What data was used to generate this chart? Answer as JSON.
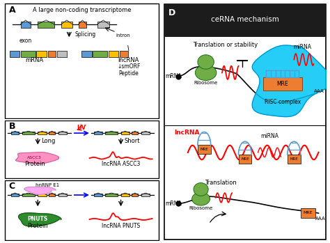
{
  "title": "ceRNA mechanism",
  "panel_A_label": "A",
  "panel_B_label": "B",
  "panel_C_label": "C",
  "panel_D_label": "D",
  "panel_A_title": "A large non-coding transcriptome",
  "splicing_label": "Splicing",
  "intron_label": "intron",
  "exon_label": "exon",
  "mrna_label": "mRNA",
  "lncrna_label": "lncRNA",
  "smorf_label": "↓smORF",
  "peptide_label": "Peptide",
  "uv_label": "UV",
  "long_label": "Long",
  "short_label": "Short",
  "protein_label": "Protein",
  "lncrna_ascc3": "lncRNA ASCC3",
  "hnrnp_label": "hnRNP E1",
  "pnuts_label": "PNUTS",
  "lncrna_pnuts": "lncRNA PNUTS",
  "translation_stability": "Translation or stability",
  "mirna_label": "miRNA",
  "ribosome_label": "Ribosome",
  "mre_label": "MRE",
  "risc_label": "RISC complex",
  "aaa_label": "AAA",
  "translation_label": "Translation",
  "lncrna_red": "lncRNA",
  "bg_color": "#ffffff",
  "exon_colors": [
    "#5b9bd5",
    "#70ad47",
    "#ffc000",
    "#ed7d31",
    "#bfbfbf"
  ],
  "ribosome_color": "#70ad47",
  "risc_color": "#00b0f0",
  "mre_color": "#ed7d31",
  "mirna_hairpin_color": "#5b9bd5",
  "lncrna_red_color": "#ff0000",
  "uv_color": "#ff0000",
  "protein_ascc3_color": "#ff91c1",
  "protein_pnuts_color": "#3a9a3a",
  "hnrnp_color": "#ffaaee"
}
